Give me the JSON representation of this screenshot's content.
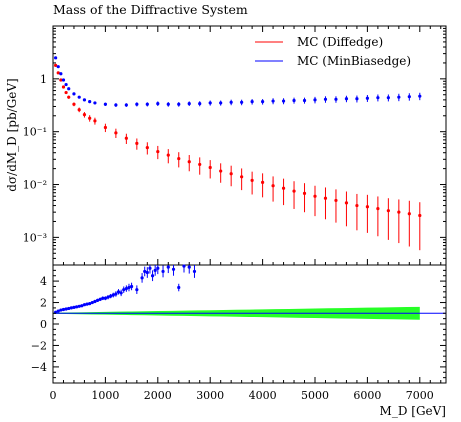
{
  "title": "Mass of the Diffractive System",
  "chart_data": [
    {
      "type": "scatter",
      "panel": "main",
      "title": "Mass of the Diffractive System",
      "xlabel": "",
      "ylabel": "dσ/dM_D [pb/GeV]",
      "yscale": "log",
      "xlim": [
        0,
        7500
      ],
      "ylim": [
        0.0003,
        10
      ],
      "grid": false,
      "legend_position": "top-right",
      "y_tick_labels": [
        "10⁻³",
        "10⁻²",
        "10⁻¹",
        "1"
      ],
      "series": [
        {
          "name": "MC (Diffedge)",
          "color": "#ff0000",
          "x": [
            50,
            100,
            150,
            200,
            250,
            300,
            400,
            500,
            600,
            700,
            800,
            1000,
            1200,
            1400,
            1600,
            1800,
            2000,
            2200,
            2400,
            2600,
            2800,
            3000,
            3200,
            3400,
            3600,
            3800,
            4000,
            4200,
            4400,
            4600,
            4800,
            5000,
            5200,
            5400,
            5600,
            5800,
            6000,
            6200,
            6400,
            6600,
            6800,
            7000
          ],
          "y": [
            1.8,
            1.3,
            0.95,
            0.7,
            0.55,
            0.45,
            0.33,
            0.26,
            0.21,
            0.18,
            0.16,
            0.12,
            0.095,
            0.075,
            0.06,
            0.05,
            0.042,
            0.036,
            0.031,
            0.027,
            0.024,
            0.021,
            0.018,
            0.016,
            0.014,
            0.012,
            0.011,
            0.0095,
            0.0085,
            0.0075,
            0.0068,
            0.006,
            0.0055,
            0.005,
            0.0045,
            0.004,
            0.0038,
            0.0035,
            0.0032,
            0.003,
            0.0028,
            0.0026
          ],
          "yerr_rel": [
            0.03,
            0.03,
            0.04,
            0.05,
            0.06,
            0.07,
            0.08,
            0.1,
            0.12,
            0.14,
            0.15,
            0.18,
            0.2,
            0.22,
            0.24,
            0.26,
            0.28,
            0.3,
            0.32,
            0.34,
            0.36,
            0.38,
            0.4,
            0.42,
            0.44,
            0.46,
            0.48,
            0.5,
            0.52,
            0.54,
            0.56,
            0.58,
            0.6,
            0.62,
            0.64,
            0.66,
            0.68,
            0.7,
            0.72,
            0.74,
            0.76,
            0.78
          ]
        },
        {
          "name": "MC (MinBiasedge)",
          "color": "#0000ff",
          "x": [
            50,
            100,
            150,
            200,
            250,
            300,
            400,
            500,
            600,
            700,
            800,
            1000,
            1200,
            1400,
            1600,
            1800,
            2000,
            2200,
            2400,
            2600,
            2800,
            3000,
            3200,
            3400,
            3600,
            3800,
            4000,
            4200,
            4400,
            4600,
            4800,
            5000,
            5200,
            5400,
            5600,
            5800,
            6000,
            6200,
            6400,
            6600,
            6800,
            7000
          ],
          "y": [
            2.5,
            1.7,
            1.25,
            0.95,
            0.78,
            0.65,
            0.52,
            0.45,
            0.4,
            0.37,
            0.35,
            0.33,
            0.32,
            0.32,
            0.33,
            0.33,
            0.34,
            0.33,
            0.33,
            0.34,
            0.34,
            0.35,
            0.35,
            0.36,
            0.36,
            0.37,
            0.37,
            0.38,
            0.38,
            0.39,
            0.39,
            0.4,
            0.41,
            0.41,
            0.42,
            0.42,
            0.43,
            0.44,
            0.44,
            0.45,
            0.46,
            0.47
          ],
          "yerr_rel": [
            0.02,
            0.02,
            0.02,
            0.03,
            0.03,
            0.04,
            0.04,
            0.05,
            0.05,
            0.06,
            0.06,
            0.07,
            0.08,
            0.08,
            0.09,
            0.09,
            0.1,
            0.1,
            0.1,
            0.1,
            0.11,
            0.11,
            0.11,
            0.12,
            0.12,
            0.12,
            0.12,
            0.13,
            0.13,
            0.13,
            0.13,
            0.14,
            0.14,
            0.14,
            0.14,
            0.15,
            0.15,
            0.15,
            0.15,
            0.16,
            0.16,
            0.16
          ]
        }
      ]
    },
    {
      "type": "scatter",
      "panel": "ratio",
      "xlabel": "M_D [GeV]",
      "ylabel": "",
      "xlim": [
        0,
        7500
      ],
      "ylim": [
        -5.5,
        5.5
      ],
      "reference_line": 1,
      "band": {
        "color": "#00ff00",
        "x_start": 0,
        "x_end": 7000,
        "halfwidth_start": 0.05,
        "halfwidth_end": 0.6
      },
      "series": [
        {
          "name": "",
          "color": "#0000ff",
          "x": [
            50,
            100,
            150,
            200,
            250,
            300,
            350,
            400,
            450,
            500,
            550,
            600,
            650,
            700,
            750,
            800,
            850,
            900,
            950,
            1000,
            1050,
            1100,
            1150,
            1200,
            1250,
            1300,
            1350,
            1400,
            1450,
            1500,
            1600,
            1700,
            1750,
            1800,
            1850,
            1900,
            1950,
            2000,
            2100,
            2200,
            2300,
            2400,
            2500,
            2600,
            2700
          ],
          "y": [
            1.1,
            1.2,
            1.3,
            1.35,
            1.4,
            1.45,
            1.5,
            1.55,
            1.6,
            1.65,
            1.7,
            1.8,
            1.85,
            1.9,
            2.0,
            2.1,
            2.2,
            2.3,
            2.4,
            2.4,
            2.5,
            2.6,
            2.7,
            2.8,
            3.0,
            2.9,
            3.2,
            3.3,
            3.4,
            3.5,
            3.2,
            4.3,
            4.9,
            4.8,
            5.2,
            4.5,
            5.0,
            5.2,
            4.9,
            5.3,
            5.1,
            3.4,
            5.4,
            5.3,
            4.9
          ],
          "yerr": [
            0.05,
            0.05,
            0.06,
            0.06,
            0.07,
            0.08,
            0.08,
            0.09,
            0.1,
            0.1,
            0.1,
            0.12,
            0.12,
            0.13,
            0.14,
            0.15,
            0.15,
            0.16,
            0.17,
            0.18,
            0.2,
            0.2,
            0.22,
            0.25,
            0.25,
            0.3,
            0.3,
            0.3,
            0.35,
            0.35,
            0.4,
            0.45,
            0.45,
            0.5,
            0.5,
            0.5,
            0.5,
            0.55,
            0.55,
            0.55,
            0.6,
            0.35,
            0.6,
            0.6,
            0.6
          ]
        }
      ]
    }
  ],
  "legend": {
    "diff_label": "MC (Diffedge)",
    "minb_label": "MC (MinBiasedge)"
  },
  "y_axis_title": "dσ/dM_D [pb/GeV]",
  "x_axis_title": "M_D [GeV]",
  "x_tick_labels": [
    "0",
    "1000",
    "2000",
    "3000",
    "4000",
    "5000",
    "6000",
    "7000"
  ],
  "ratio_tick_labels": [
    "4",
    "2",
    "0",
    "−2",
    "−4"
  ]
}
